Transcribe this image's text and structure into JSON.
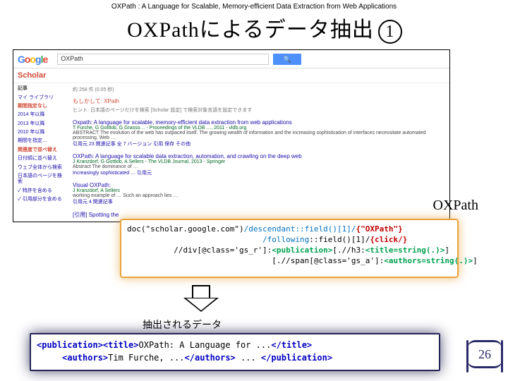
{
  "header": "OXPath : A Language for Scalable, Memory-efficient Data Extraction from Web Applications",
  "title_main": "OXPathによるデータ抽出",
  "title_num": "1",
  "shot": {
    "logo": [
      "G",
      "o",
      "o",
      "g",
      "l",
      "e"
    ],
    "search_value": "OXPath",
    "search_icon": "🔍",
    "scholar": "Scholar",
    "count": "約 258 件 (0.05 秒)",
    "did_you": "もしかして: XPath",
    "tip": "ヒント: 日本語のページだけを検索 [Scholar 設定] で検索対象言語を設定できます",
    "side": {
      "hdr1": "記事",
      "s1": "マイ ライブラリ",
      "hdr2": "期間指定なし",
      "y1": "2014 年以降",
      "y2": "2013 年以降",
      "y3": "2010 年以降",
      "y4": "期間を指定…",
      "hdr3": "関連度で並べ替え",
      "s2": "日付順に並べ替え",
      "s3": "ウェブ全体から検索",
      "s4": "日本語のページを検索",
      "c1": "✓ 特許を含める",
      "c2": "✓ 引用部分を含める"
    },
    "r1": {
      "t": "Oxpath: A language for scalable, memory-efficient data extraction from web applications",
      "a": "T Furche, G Gottlob, G Grasso… - Proceedings of the VLDB …, 2011 - vldb.org",
      "s": "ABSTRACT The evolution of the web has outpaced itself. The growing wealth of information and the increasing sophistication of interfaces necessitate automated processing. Web …",
      "c": "引用元 23  関連記事  全 7 バージョン  引用  保存  その他"
    },
    "r2": {
      "t": "OXPath: A language for scalable data extraction, automation, and crawling on the deep web",
      "a": "J Kranzdorf, G Gottlob, A Sellers - The VLDB Journal, 2013 - Springer",
      "s": "Abstract The dominance of …",
      "c": "Increasingly sophisticated … 引用元"
    },
    "r3": {
      "t": "Visual OXPath: ",
      "a": "J Kranzdorf, A Sellers",
      "s": "working example of …  Such an approach lies …",
      "c": "引用元 4  関連記事"
    },
    "r4": {
      "t": "[引用] Spotting the"
    }
  },
  "oxpath_label": "OXPath",
  "code1": {
    "l1a": "doc(",
    "l1b": "\"scholar.google.com\"",
    "l1c": ")",
    "l1d": "/descendant::field()[1]/",
    "l1e": "{\"OXPath\"}",
    "l2a": "                             ",
    "l2b": "/following",
    "l2c": "::field()[1]/",
    "l2d": "{click/}",
    "l3a": "          //div[@class='gs_r']:",
    "l3b": "<publication>",
    "l3c": "[.//h3:",
    "l3d": "<title=string(.)>",
    "l3e": "]",
    "l4a": "                               [.//span[@class='gs_a']:",
    "l4b": "<authors=string(.)>",
    "l4c": "]"
  },
  "extract_label": "抽出されるデータ",
  "code2": {
    "l1a": "<publication><title>",
    "l1b": "OXPath: A Language for ...",
    "l1c": "</title>",
    "l2a": "     ",
    "l2b": "<authors>",
    "l2c": "Tim Furche, ...",
    "l2d": "</authors>",
    "l2e": " ... ",
    "l2f": "</publication>"
  },
  "page_num": "26"
}
